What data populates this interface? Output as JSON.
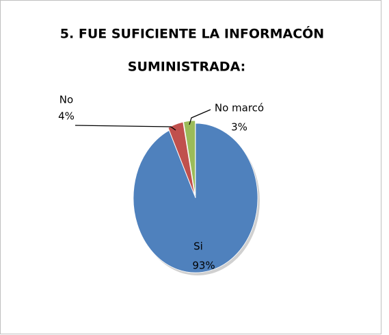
{
  "chart_data": {
    "type": "pie",
    "title": [
      "5. FUE SUFICIENTE LA INFORMACÓN",
      "SUMINISTRADA:"
    ],
    "categories": [
      "Si",
      "No",
      "No marcó"
    ],
    "values": [
      93,
      4,
      3
    ],
    "value_labels": [
      "93%",
      "4%",
      "3%"
    ],
    "colors": [
      "#4f81bd",
      "#c0504d",
      "#9bbb59"
    ]
  }
}
